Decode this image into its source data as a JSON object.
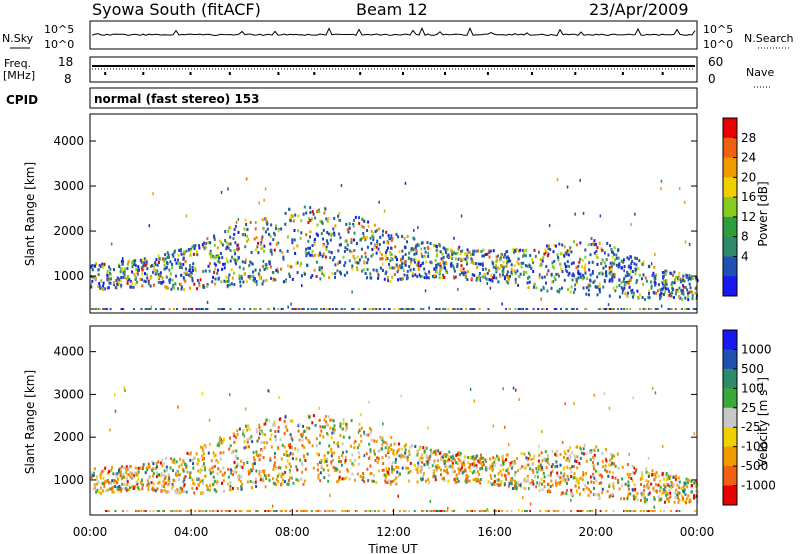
{
  "header": {
    "station": "Syowa South (fitACF)",
    "beam": "Beam 12",
    "date": "23/Apr/2009"
  },
  "panels": {
    "nsky": {
      "label": "N.Sky",
      "right_label": "N.Search",
      "left_ticks": [
        "10^5",
        "10^0"
      ],
      "right_ticks": [
        "10^5",
        "10^0"
      ]
    },
    "freq": {
      "label_line1": "Freq.",
      "label_line2": "[MHz]",
      "right_label": "Nave",
      "left_ticks": [
        "18",
        "8"
      ],
      "right_ticks": [
        "60",
        "0"
      ]
    },
    "cpid": {
      "label": "CPID",
      "value": "normal (fast stereo) 153"
    }
  },
  "chart_data": [
    {
      "type": "heatmap",
      "name": "power-panel",
      "xlabel": "",
      "ylabel": "Slant Range [km]",
      "xlim": [
        0,
        24
      ],
      "ylim": [
        180,
        4600
      ],
      "yticks": [
        1000,
        2000,
        3000,
        4000
      ],
      "colorbar": {
        "label": "Power [dB]",
        "ticks": [
          "28",
          "24",
          "20",
          "16",
          "12",
          "8",
          "4"
        ],
        "colors": [
          "#e80000",
          "#f06010",
          "#f09a00",
          "#f0d000",
          "#88cc22",
          "#2e9e3c",
          "#2f8a6a",
          "#2050b0",
          "#1818f0"
        ]
      }
    },
    {
      "type": "heatmap",
      "name": "velocity-panel",
      "xlabel": "Time UT",
      "ylabel": "Slant Range [km]",
      "xlim": [
        0,
        24
      ],
      "ylim": [
        180,
        4600
      ],
      "xticks": [
        "00:00",
        "04:00",
        "08:00",
        "12:00",
        "16:00",
        "20:00",
        "00:00"
      ],
      "yticks": [
        1000,
        2000,
        3000,
        4000
      ],
      "colorbar": {
        "label": "Velocity [m s^-1]",
        "ticks": [
          "1000",
          "500",
          "100",
          "25",
          "-25",
          "-100",
          "-500",
          "-1000"
        ],
        "colors": [
          "#1818f0",
          "#2050b0",
          "#2f8a6a",
          "#3aa83a",
          "#c8c8c8",
          "#f0d000",
          "#f09a00",
          "#f06010",
          "#e80000"
        ]
      }
    }
  ]
}
